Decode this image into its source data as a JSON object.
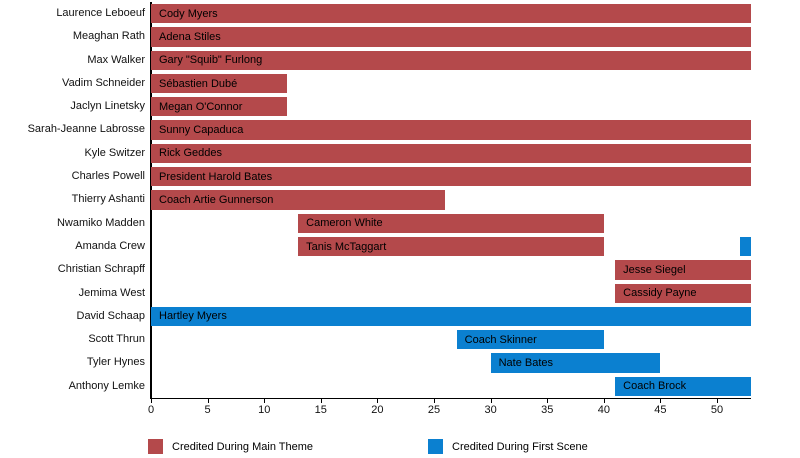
{
  "chart_data": {
    "type": "bar",
    "orientation": "horizontal",
    "title": "",
    "xlabel": "",
    "ylabel": "",
    "xlim": [
      0,
      53
    ],
    "xticks": [
      0,
      5,
      10,
      15,
      20,
      25,
      30,
      35,
      40,
      45,
      50
    ],
    "grid": false,
    "colors": {
      "main_theme": "#b4494b",
      "first_scene": "#0b80d0"
    },
    "legend": [
      {
        "label": "Credited During Main Theme",
        "color_key": "main_theme"
      },
      {
        "label": "Credited During First Scene",
        "color_key": "first_scene"
      }
    ],
    "rows": [
      {
        "actor": "Laurence Leboeuf",
        "bars": [
          {
            "label": "Cody Myers",
            "start": 0,
            "end": 53,
            "color_key": "main_theme"
          }
        ]
      },
      {
        "actor": "Meaghan Rath",
        "bars": [
          {
            "label": "Adena Stiles",
            "start": 0,
            "end": 53,
            "color_key": "main_theme"
          }
        ]
      },
      {
        "actor": "Max Walker",
        "bars": [
          {
            "label": "Gary \"Squib\" Furlong",
            "start": 0,
            "end": 53,
            "color_key": "main_theme"
          }
        ]
      },
      {
        "actor": "Vadim Schneider",
        "bars": [
          {
            "label": "Sébastien Dubé",
            "start": 0,
            "end": 12,
            "color_key": "main_theme"
          }
        ]
      },
      {
        "actor": "Jaclyn Linetsky",
        "bars": [
          {
            "label": "Megan O'Connor",
            "start": 0,
            "end": 12,
            "color_key": "main_theme"
          }
        ]
      },
      {
        "actor": "Sarah-Jeanne Labrosse",
        "bars": [
          {
            "label": "Sunny Capaduca",
            "start": 0,
            "end": 53,
            "color_key": "main_theme"
          }
        ]
      },
      {
        "actor": "Kyle Switzer",
        "bars": [
          {
            "label": "Rick Geddes",
            "start": 0,
            "end": 53,
            "color_key": "main_theme"
          }
        ]
      },
      {
        "actor": "Charles Powell",
        "bars": [
          {
            "label": "President Harold Bates",
            "start": 0,
            "end": 53,
            "color_key": "main_theme"
          }
        ]
      },
      {
        "actor": "Thierry Ashanti",
        "bars": [
          {
            "label": "Coach Artie Gunnerson",
            "start": 0,
            "end": 26,
            "color_key": "main_theme"
          }
        ]
      },
      {
        "actor": "Nwamiko Madden",
        "bars": [
          {
            "label": "Cameron White",
            "start": 13,
            "end": 40,
            "color_key": "main_theme"
          }
        ]
      },
      {
        "actor": "Amanda Crew",
        "bars": [
          {
            "label": "Tanis McTaggart",
            "start": 13,
            "end": 40,
            "color_key": "main_theme"
          },
          {
            "label": "",
            "start": 52,
            "end": 53,
            "color_key": "first_scene"
          }
        ]
      },
      {
        "actor": "Christian Schrapff",
        "bars": [
          {
            "label": "Jesse Siegel",
            "start": 41,
            "end": 53,
            "color_key": "main_theme"
          }
        ]
      },
      {
        "actor": "Jemima West",
        "bars": [
          {
            "label": "Cassidy Payne",
            "start": 41,
            "end": 53,
            "color_key": "main_theme"
          }
        ]
      },
      {
        "actor": "David Schaap",
        "bars": [
          {
            "label": "Hartley Myers",
            "start": 0,
            "end": 53,
            "color_key": "first_scene"
          }
        ]
      },
      {
        "actor": "Scott Thrun",
        "bars": [
          {
            "label": "Coach Skinner",
            "start": 27,
            "end": 40,
            "color_key": "first_scene"
          }
        ]
      },
      {
        "actor": "Tyler Hynes",
        "bars": [
          {
            "label": "Nate Bates",
            "start": 30,
            "end": 45,
            "color_key": "first_scene"
          }
        ]
      },
      {
        "actor": "Anthony Lemke",
        "bars": [
          {
            "label": "Coach Brock",
            "start": 41,
            "end": 53,
            "color_key": "first_scene"
          }
        ]
      }
    ]
  }
}
